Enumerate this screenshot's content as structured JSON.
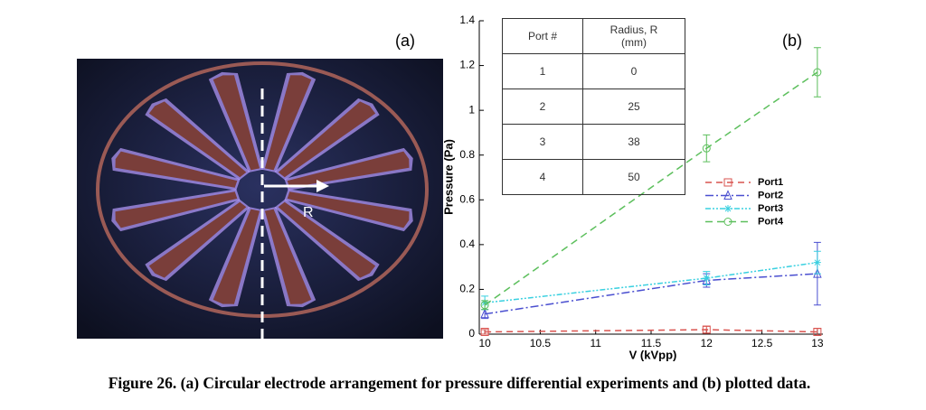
{
  "panel_a": {
    "label": "(a)",
    "arrow_label": "R"
  },
  "table": {
    "header": [
      "Port #",
      "Radius, R (mm)"
    ],
    "rows": [
      [
        1,
        0
      ],
      [
        2,
        25
      ],
      [
        3,
        38
      ],
      [
        4,
        50
      ]
    ]
  },
  "chart_data": {
    "type": "line",
    "panel_label": "(b)",
    "x_label": "V (kVpp)",
    "y_label": "Pressure (Pa)",
    "x": [
      10,
      12,
      13
    ],
    "xlim": [
      9.95,
      13.05
    ],
    "xticks": [
      10,
      10.5,
      11,
      11.5,
      12,
      12.5,
      13
    ],
    "ylim": [
      0,
      1.4
    ],
    "yticks": [
      0,
      0.2,
      0.4,
      0.6,
      0.8,
      1,
      1.2,
      1.4
    ],
    "series": [
      {
        "name": "Port1",
        "color": "#d9534f",
        "marker": "square",
        "values": [
          0.01,
          0.02,
          0.01
        ],
        "errors": [
          0.01,
          0.015,
          0.015
        ]
      },
      {
        "name": "Port2",
        "color": "#4a4fd0",
        "marker": "triangle",
        "values": [
          0.09,
          0.24,
          0.27
        ],
        "errors": [
          0.02,
          0.03,
          0.14
        ]
      },
      {
        "name": "Port3",
        "color": "#39d0e0",
        "marker": "star",
        "values": [
          0.14,
          0.25,
          0.32
        ],
        "errors": [
          0.03,
          0.03,
          0.05
        ]
      },
      {
        "name": "Port4",
        "color": "#5cbf5c",
        "marker": "circle",
        "values": [
          0.13,
          0.83,
          1.17
        ],
        "errors": [
          0.02,
          0.06,
          0.11
        ]
      }
    ]
  },
  "caption": "Figure 26. (a) Circular electrode arrangement for pressure differential experiments and (b) plotted data."
}
